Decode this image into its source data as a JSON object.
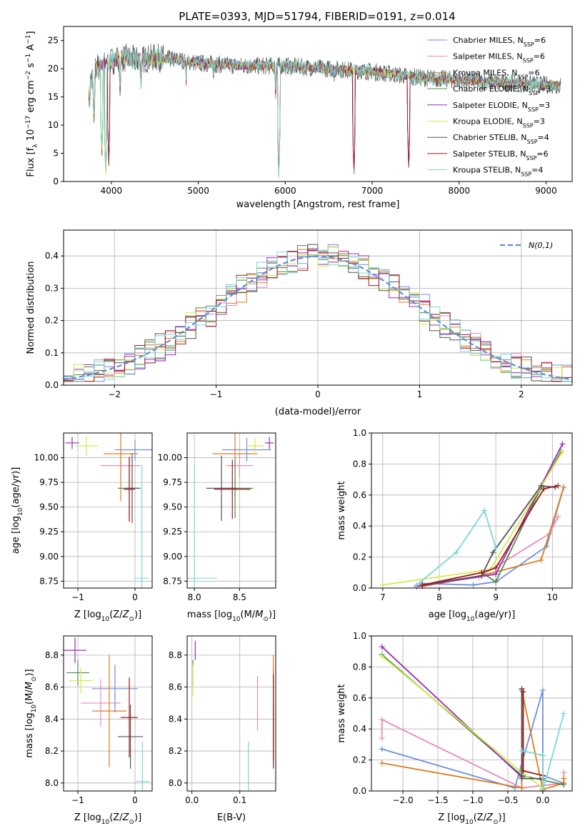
{
  "figure": {
    "title": "PLATE=0393, MJD=51794, FIBERID=0191, z=0.014"
  },
  "series_colors": [
    "#6c8fe0",
    "#e98ab9",
    "#e07b1f",
    "#4e8c4e",
    "#9a2bb8",
    "#d6ea47",
    "#555555",
    "#a01818",
    "#7ad8d8"
  ],
  "chart_data": [
    {
      "id": "spectrum",
      "type": "line",
      "title": "PLATE=0393, MJD=51794, FIBERID=0191, z=0.014",
      "xlabel": "wavelength [Angstrom, rest frame]",
      "ylabel": "Flux [f_λ 10^-17 erg cm^-2 s^-1 A^-1]",
      "xlim": [
        3450,
        9300
      ],
      "ylim": [
        0,
        27.5
      ],
      "xticks": [
        4000,
        5000,
        6000,
        7000,
        8000,
        9000
      ],
      "yticks": [
        0,
        5,
        10,
        15,
        20,
        25
      ],
      "legend": "top-right",
      "x_range": [
        3740,
        9170
      ],
      "legend_entries": [
        {
          "label": "Chabrier MILES, N",
          "sub": "SSP",
          "tail": "=6"
        },
        {
          "label": "Salpeter MILES, N",
          "sub": "SSP",
          "tail": "=6"
        },
        {
          "label": "Kroupa MILES, N",
          "sub": "SSP",
          "tail": "=6"
        },
        {
          "label": "Chabrier ELODIE, N",
          "sub": "SSP",
          "tail": "=3"
        },
        {
          "label": "Salpeter ELODIE, N",
          "sub": "SSP",
          "tail": "=3"
        },
        {
          "label": "Kroupa ELODIE, N",
          "sub": "SSP",
          "tail": "=3"
        },
        {
          "label": "Chabrier STELIB, N",
          "sub": "SSP",
          "tail": "=4"
        },
        {
          "label": "Salpeter STELIB, N",
          "sub": "SSP",
          "tail": "=6"
        },
        {
          "label": "Kroupa STELIB, N",
          "sub": "SSP",
          "tail": "=4"
        }
      ],
      "continuum": [
        [
          3740,
          16
        ],
        [
          3800,
          20
        ],
        [
          3950,
          21
        ],
        [
          4100,
          22
        ],
        [
          4300,
          21.5
        ],
        [
          4500,
          22
        ],
        [
          4800,
          21.5
        ],
        [
          5000,
          21
        ],
        [
          5500,
          20.5
        ],
        [
          6000,
          20.5
        ],
        [
          6500,
          20
        ],
        [
          7000,
          19.5
        ],
        [
          7500,
          18.5
        ],
        [
          8000,
          18
        ],
        [
          8500,
          17.5
        ],
        [
          9170,
          17
        ]
      ],
      "absorption_features": [
        [
          3750,
          11
        ],
        [
          3800,
          9
        ],
        [
          3890,
          3
        ],
        [
          3935,
          0
        ],
        [
          3970,
          2
        ],
        [
          4100,
          14
        ],
        [
          4340,
          15
        ],
        [
          4860,
          17
        ],
        [
          5175,
          18
        ],
        [
          5890,
          14
        ],
        [
          5925,
          0
        ],
        [
          6565,
          17
        ],
        [
          6790,
          0
        ],
        [
          7420,
          1
        ]
      ]
    },
    {
      "id": "residuals",
      "type": "histogram",
      "xlabel": "(data-model)/error",
      "ylabel": "Normed distribution",
      "xlim": [
        -2.5,
        2.5
      ],
      "ylim": [
        0,
        0.48
      ],
      "xticks": [
        -2,
        -1,
        0,
        1,
        2
      ],
      "yticks": [
        0.0,
        0.1,
        0.2,
        0.3,
        0.4
      ],
      "legend": "top-right",
      "reference_curve": {
        "label": "N(0,1)",
        "mean": 0,
        "sigma": 1,
        "color": "#5b8fd9"
      },
      "bin_width": 0.1,
      "spread": 0.04
    },
    {
      "id": "age_vs_Z",
      "type": "errorbar",
      "xlabel": "Z [log10(Z/Z⊙)]",
      "ylabel": "age  [log10(age/yr)]",
      "xlim": [
        -1.25,
        0.3
      ],
      "ylim": [
        8.68,
        10.25
      ],
      "xticks": [
        -1,
        0
      ],
      "yticks": [
        8.75,
        9.0,
        9.25,
        9.5,
        9.75,
        10.0
      ],
      "points": [
        {
          "x": 0.0,
          "y": 10.08,
          "xerr": 0.35,
          "yerr": 0.1
        },
        {
          "x": -0.25,
          "y": 9.92,
          "xerr": 0.35,
          "yerr": 0.12
        },
        {
          "x": -0.25,
          "y": 10.04,
          "xerr": 0.3,
          "yerr": 0.48
        },
        {
          "x": -0.1,
          "y": 9.69,
          "xerr": 0.2,
          "yerr": 0.3
        },
        {
          "x": -1.1,
          "y": 10.15,
          "xerr": 0.12,
          "yerr": 0.06
        },
        {
          "x": -0.85,
          "y": 10.12,
          "xerr": 0.2,
          "yerr": 0.1
        },
        {
          "x": -0.05,
          "y": 9.69,
          "xerr": 0.12,
          "yerr": 0.35
        },
        {
          "x": -0.1,
          "y": 9.68,
          "xerr": 0.1,
          "yerr": 0.33
        },
        {
          "x": 0.12,
          "y": 8.78,
          "xerr": 0.12,
          "yerr": 1.15
        }
      ]
    },
    {
      "id": "age_vs_mass",
      "type": "errorbar",
      "xlabel": "mass [log10(M/M⊙)]",
      "ylabel": "",
      "xlim": [
        7.92,
        8.9
      ],
      "ylim": [
        8.68,
        10.25
      ],
      "xticks": [
        8.0,
        8.5
      ],
      "yticks": [
        8.75,
        9.0,
        9.25,
        9.5,
        9.75,
        10.0
      ],
      "points": [
        {
          "x": 8.58,
          "y": 10.08,
          "xerr": 0.27,
          "yerr": 0.12
        },
        {
          "x": 8.5,
          "y": 9.92,
          "xerr": 0.15,
          "yerr": 0.12
        },
        {
          "x": 8.45,
          "y": 10.04,
          "xerr": 0.25,
          "yerr": 0.45
        },
        {
          "x": 8.45,
          "y": 9.69,
          "xerr": 0.2,
          "yerr": 0.3
        },
        {
          "x": 8.83,
          "y": 10.15,
          "xerr": 0.05,
          "yerr": 0.06
        },
        {
          "x": 8.67,
          "y": 10.12,
          "xerr": 0.1,
          "yerr": 0.08
        },
        {
          "x": 8.3,
          "y": 9.69,
          "xerr": 0.17,
          "yerr": 0.33
        },
        {
          "x": 8.42,
          "y": 9.68,
          "xerr": 0.2,
          "yerr": 0.3
        },
        {
          "x": 8.0,
          "y": 8.78,
          "xerr": 0.25,
          "yerr": 1.15
        }
      ]
    },
    {
      "id": "weight_vs_age",
      "type": "line",
      "xlabel": "age  [log10(age/yr)]",
      "ylabel": "mass weight",
      "xlim": [
        6.8,
        10.35
      ],
      "ylim": [
        0,
        1.0
      ],
      "xticks": [
        7,
        8,
        9,
        10
      ],
      "yticks": [
        0.0,
        0.2,
        0.4,
        0.6,
        0.8,
        1.0
      ],
      "series": [
        {
          "x": [
            7.7,
            8.6,
            9.0,
            9.9,
            10.2
          ],
          "y": [
            0.03,
            0.02,
            0.04,
            0.27,
            0.65
          ]
        },
        {
          "x": [
            7.7,
            8.7,
            9.95,
            10.1
          ],
          "y": [
            0.02,
            0.07,
            0.35,
            0.46
          ]
        },
        {
          "x": [
            7.7,
            8.75,
            9.8,
            10.2
          ],
          "y": [
            0.01,
            0.08,
            0.18,
            0.65
          ]
        },
        {
          "x": [
            8.75,
            9.0,
            9.8,
            10.15
          ],
          "y": [
            0.1,
            0.04,
            0.65,
            0.88
          ]
        },
        {
          "x": [
            7.6,
            9.0,
            10.18
          ],
          "y": [
            0.01,
            0.09,
            0.93
          ]
        },
        {
          "x": [
            7.0,
            8.9,
            10.18
          ],
          "y": [
            0.02,
            0.12,
            0.88
          ]
        },
        {
          "x": [
            7.7,
            8.75,
            8.95,
            9.8,
            10.05
          ],
          "y": [
            0.02,
            0.08,
            0.23,
            0.66,
            0.65
          ]
        },
        {
          "x": [
            7.7,
            8.75,
            9.0,
            9.85,
            10.1
          ],
          "y": [
            0.02,
            0.1,
            0.13,
            0.64,
            0.66
          ]
        },
        {
          "x": [
            7.6,
            8.3,
            8.8,
            9.0
          ],
          "y": [
            0.02,
            0.23,
            0.5,
            0.26
          ]
        }
      ]
    },
    {
      "id": "mass_vs_Z",
      "type": "errorbar",
      "xlabel": "Z [log10(Z/Z⊙)]",
      "ylabel": "mass [log10(M/M⊙)]",
      "xlim": [
        -1.25,
        0.3
      ],
      "ylim": [
        7.95,
        8.92
      ],
      "xticks": [
        -1,
        0
      ],
      "yticks": [
        8.0,
        8.2,
        8.4,
        8.6,
        8.8
      ],
      "points": [
        {
          "x": -0.35,
          "y": 8.59,
          "xerr": 0.4,
          "yerr": 0.15
        },
        {
          "x": -0.6,
          "y": 8.5,
          "xerr": 0.35,
          "yerr": 0.15
        },
        {
          "x": -0.45,
          "y": 8.45,
          "xerr": 0.3,
          "yerr": 0.35
        },
        {
          "x": -1.0,
          "y": 8.69,
          "xerr": 0.2,
          "yerr": 0.08
        },
        {
          "x": -1.05,
          "y": 8.83,
          "xerr": 0.2,
          "yerr": 0.08
        },
        {
          "x": -0.95,
          "y": 8.64,
          "xerr": 0.2,
          "yerr": 0.08
        },
        {
          "x": -0.08,
          "y": 8.29,
          "xerr": 0.22,
          "yerr": 0.2
        },
        {
          "x": -0.1,
          "y": 8.41,
          "xerr": 0.15,
          "yerr": 0.25
        },
        {
          "x": 0.13,
          "y": 8.01,
          "xerr": 0.12,
          "yerr": 0.25
        }
      ]
    },
    {
      "id": "mass_vs_ebv",
      "type": "errorbar",
      "xlabel": "E(B-V)",
      "ylabel": "",
      "xlim": [
        -0.01,
        0.175
      ],
      "ylim": [
        7.95,
        8.92
      ],
      "xticks": [
        0.0,
        0.1
      ],
      "yticks": [
        8.0,
        8.2,
        8.4,
        8.6,
        8.8
      ],
      "points": [
        {
          "x": 0.17,
          "y": 8.58,
          "xerr": 0,
          "yerr": 0.15
        },
        {
          "x": 0.137,
          "y": 8.5,
          "xerr": 0,
          "yerr": 0.17
        },
        {
          "x": 0.17,
          "y": 8.45,
          "xerr": 0,
          "yerr": 0.35
        },
        {
          "x": 0.002,
          "y": 8.69,
          "xerr": 0,
          "yerr": 0.08
        },
        {
          "x": 0.007,
          "y": 8.83,
          "xerr": 0,
          "yerr": 0.06
        },
        {
          "x": 0.002,
          "y": 8.64,
          "xerr": 0,
          "yerr": 0.1
        },
        {
          "x": 0.17,
          "y": 8.29,
          "xerr": 0,
          "yerr": 0.2
        },
        {
          "x": 0.17,
          "y": 8.41,
          "xerr": 0,
          "yerr": 0.27
        },
        {
          "x": 0.118,
          "y": 8.01,
          "xerr": 0,
          "yerr": 0.25
        }
      ]
    },
    {
      "id": "weight_vs_Z",
      "type": "line",
      "xlabel": "Z [log10(Z/Z⊙)]",
      "ylabel": "mass weight",
      "xlim": [
        -2.45,
        0.42
      ],
      "ylim": [
        0,
        1.0
      ],
      "xticks": [
        -2.0,
        -1.5,
        -1.0,
        -0.5,
        0.0
      ],
      "yticks": [
        0.0,
        0.2,
        0.4,
        0.6,
        0.8,
        1.0
      ],
      "series": [
        {
          "x": [
            -2.3,
            -0.4,
            0.0,
            0.0,
            0.3
          ],
          "y": [
            0.27,
            0.02,
            0.65,
            0.1,
            0.05
          ]
        },
        {
          "x": [
            -2.3,
            -2.3,
            -0.3,
            0.3,
            0.3
          ],
          "y": [
            0.34,
            0.46,
            0.02,
            0.05,
            0.12
          ]
        },
        {
          "x": [
            -2.3,
            -0.3,
            -0.3,
            0.0,
            0.3,
            0.3
          ],
          "y": [
            0.18,
            0.02,
            0.65,
            0.01,
            0.05,
            0.08
          ]
        },
        {
          "x": [
            -2.3,
            -0.3,
            0.3
          ],
          "y": [
            0.88,
            0.1,
            0.04
          ]
        },
        {
          "x": [
            -2.3,
            -0.3
          ],
          "y": [
            0.93,
            0.09
          ]
        },
        {
          "x": [
            -2.3,
            -0.3,
            0.0
          ],
          "y": [
            0.87,
            0.12,
            0.02
          ]
        },
        {
          "x": [
            -0.3,
            -0.3,
            0.0,
            0.0
          ],
          "y": [
            0.66,
            0.08,
            0.08,
            0.23
          ]
        },
        {
          "x": [
            -0.28,
            -0.28,
            0.0,
            0.0
          ],
          "y": [
            0.64,
            0.13,
            0.1,
            0.0
          ]
        },
        {
          "x": [
            -0.3,
            0.0,
            0.0,
            0.3
          ],
          "y": [
            0.26,
            0.23,
            0.0,
            0.5
          ]
        }
      ]
    }
  ]
}
